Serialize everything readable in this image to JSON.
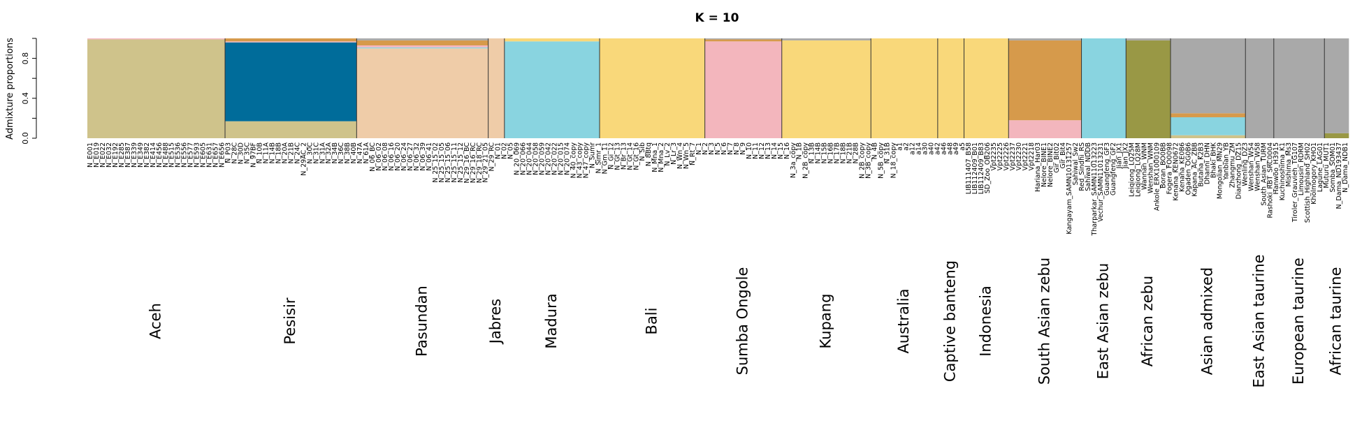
{
  "chart_data": {
    "type": "admixture-bar",
    "title": "K = 10",
    "ylabel": "Admixture proportions",
    "ylim": [
      0,
      1
    ],
    "yticks": [
      "0.0",
      "0.4",
      "0.8"
    ],
    "grid": false,
    "legend": "none",
    "component_colors": {
      "c1": "#cfc38b",
      "c2": "#006c9a",
      "c3": "#efcca8",
      "c4": "#89d4e0",
      "c5": "#f9d87a",
      "c6": "#f3b6bd",
      "c7": "#d69a4b",
      "c8": "#999845",
      "c9": "#a9a9a9"
    },
    "groups": [
      {
        "name": "Aceh",
        "n": 68,
        "proportions": {
          "c1": 0.99,
          "c6": 0.01
        }
      },
      {
        "name": "Pesisir",
        "n": 65,
        "proportions": {
          "c2": 0.79,
          "c1": 0.17,
          "c7": 0.03,
          "c6": 0.01
        }
      },
      {
        "name": "Pasundan",
        "n": 65,
        "proportions": {
          "c3": 0.9,
          "c7": 0.05,
          "c6": 0.02,
          "c9": 0.02,
          "c4": 0.01
        }
      },
      {
        "name": "Jabres",
        "n": 8,
        "proportions": {
          "c3": 1.0
        }
      },
      {
        "name": "Madura",
        "n": 47,
        "proportions": {
          "c4": 0.97,
          "c5": 0.03
        }
      },
      {
        "name": "Bali",
        "n": 52,
        "proportions": {
          "c5": 1.0
        }
      },
      {
        "name": "Sumba Ongole",
        "n": 38,
        "proportions": {
          "c6": 0.97,
          "c7": 0.02,
          "c9": 0.01
        }
      },
      {
        "name": "Kupang",
        "n": 44,
        "proportions": {
          "c5": 0.98,
          "c9": 0.02
        }
      },
      {
        "name": "Australia",
        "n": 33,
        "proportions": {
          "c5": 1.0
        }
      },
      {
        "name": "Captive banteng",
        "n": 13,
        "proportions": {
          "c5": 1.0
        }
      },
      {
        "name": "Indonesia",
        "n": 22,
        "proportions": {
          "c5": 1.0
        }
      },
      {
        "name": "South Asian zebu",
        "n": 36,
        "proportions": {
          "c7": 0.8,
          "c6": 0.18,
          "c9": 0.02
        }
      },
      {
        "name": "East Asian zebu",
        "n": 22,
        "proportions": {
          "c4": 1.0
        }
      },
      {
        "name": "African zebu",
        "n": 22,
        "proportions": {
          "c8": 0.98,
          "c9": 0.02
        }
      },
      {
        "name": "Asian admixed",
        "n": 37,
        "proportions": {
          "c9": 0.75,
          "c4": 0.18,
          "c7": 0.04,
          "c1": 0.03
        }
      },
      {
        "name": "East Asian taurine",
        "n": 14,
        "proportions": {
          "c9": 1.0
        }
      },
      {
        "name": "European taurine",
        "n": 25,
        "proportions": {
          "c9": 1.0
        }
      },
      {
        "name": "African taurine",
        "n": 12,
        "proportions": {
          "c9": 0.95,
          "c8": 0.05
        }
      }
    ],
    "sample_labels": [
      "N_E001",
      "N_E019",
      "N_E022",
      "N_E032",
      "N_E192",
      "N_E285",
      "N_E387",
      "N_E339",
      "N_E349",
      "N_E382",
      "N_E414",
      "N_E456",
      "N_E488",
      "N_E515",
      "N_E536",
      "N_E556",
      "N_E577",
      "N_E593",
      "N_E605",
      "N_E631",
      "N_E657",
      "N_E656",
      "N_P03",
      "N_28C",
      "N_30D",
      "N_35C",
      "N_97BF",
      "N_10B",
      "N_11A",
      "N_14B",
      "N_18B",
      "N_20A",
      "N_21B",
      "N_24C",
      "N_29AC_2",
      "N_30C",
      "N_31C",
      "N_31A",
      "N_32A",
      "N_34B",
      "N_36C",
      "N_38B",
      "N_40B",
      "N_47A",
      "N_61A",
      "N_06_BC",
      "N_06_02",
      "N_06_08",
      "N_06_16",
      "N_06_20",
      "N_06_24",
      "N_06_27",
      "N_06_32",
      "N_06_39",
      "N_06_41",
      "N_25_15_02",
      "N_25_15_05",
      "N_25_15_06",
      "N_25_15_11",
      "N_25_15_12",
      "N_29_16_BC",
      "N_29_16_RC",
      "N_29_18_RC",
      "N_29_21_05",
      "N_29_RC",
      "N_01",
      "N_02",
      "N_05",
      "N_20_069",
      "N_20_066",
      "N_20_044",
      "N_20_058",
      "N_20_059",
      "N_20_042",
      "N_20_022",
      "N_20_015",
      "N_20_074",
      "N_40_copy",
      "N_43_copy",
      "N_47_copy",
      "N_Sumr",
      "N_Simr_1",
      "N_Gm_11",
      "N_Gi_12",
      "N_Gt_13",
      "N_Br_13",
      "N_Gt_14",
      "N_Gt_16",
      "N_Sib",
      "N_8Btq",
      "N_Mna_1",
      "N_Mna_2",
      "N_Lv_2",
      "N_Lr_3",
      "N_Wn_4",
      "N_Wn_5",
      "N_Rt_7",
      "N_1",
      "N_2",
      "N_3",
      "N_5",
      "N_6",
      "N_7",
      "N_8",
      "N_9",
      "N_10",
      "N_11",
      "N_12",
      "N_13",
      "N_14",
      "N_15",
      "N_16",
      "N_3a_copy",
      "N_1B",
      "N_2B_copy",
      "N_13B",
      "N_14B",
      "N_15B",
      "N_16B",
      "N_17B",
      "N_18B",
      "N_21B",
      "N_28B",
      "N_2B_copy",
      "N_3B_copy",
      "N_4B",
      "N_5B_copy",
      "N_31B",
      "N_18_copy",
      "a1",
      "a2",
      "a12",
      "a14",
      "a30",
      "a40",
      "a42",
      "a46",
      "a48",
      "a49",
      "a5",
      "LIB111407_B58",
      "LIB112409_B01",
      "LIB112409_B83",
      "SD_Zoo_OB206",
      "Vpt2235",
      "Vpt2225",
      "Vpt2226",
      "Vpt2237",
      "Vpt2230",
      "Vpt2221",
      "Vpt2218",
      "Hariana_Har03",
      "Nelore_BINE1",
      "Nelore_BINE2",
      "Gir_Bit02",
      "Gir_Bit4",
      "Kangayam_SAMN10131257",
      "Sahiwal_Sw2",
      "Red_Sindhi_RS",
      "Sahiwal_NDDB",
      "Tharparkar_SAMN11013223",
      "Vechur_SAMN11013231",
      "Guangfeng_GF3",
      "Guangfeng_GF2",
      "Jian_JX1",
      "Jian_JX2",
      "Leiqiong_LQ25M",
      "Leiqiong_LQ28M",
      "Wannan_WNM",
      "Wenshan_WNM",
      "Ankole_ERX1000109",
      "Boran_BO0BB",
      "Fogera_FO0098",
      "Kenana_KEN0672",
      "Kenana_KE0B6",
      "Ogaden_OG0B6",
      "Kapana_AC_ZBB",
      "Butana_K2B3",
      "Dhanni_DHN",
      "Bhaki_BHK",
      "Mongolian_MN29",
      "Yanbian_YB",
      "Zhangmu_ZM",
      "Dianzhong_DZ15",
      "Wenling_DZ3",
      "Wenshan_W54",
      "Wenshan_W58",
      "South_Asian_TURM",
      "Rashoki_RBT_SRC0004",
      "Hanwoo_H3915",
      "Kuchinoshima_K1",
      "Mishima_Ms3",
      "Tiroler_Grauvieh_TG107",
      "Limousin_RDRM",
      "Scottish_Highland_SH02",
      "Kholmogory_KHO1",
      "Lagune_LAG01",
      "Muturu_MUT1",
      "Somba_SOM01",
      "N_Dama_ND193437",
      "N_Dama_NDB1"
    ]
  }
}
